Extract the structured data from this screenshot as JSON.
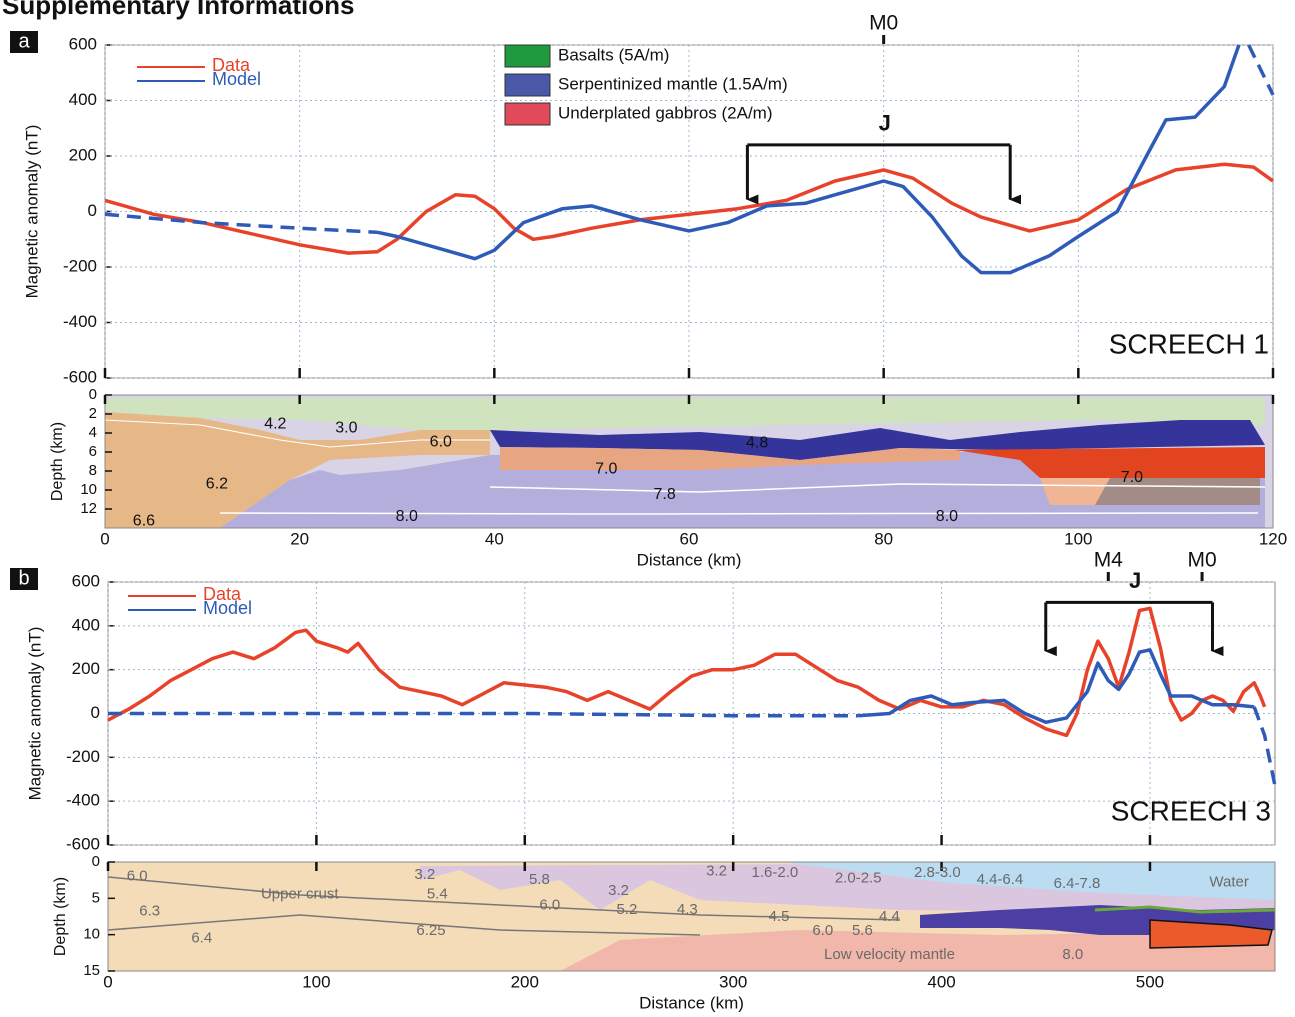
{
  "title": "Supplementary Informations",
  "chart_data": [
    {
      "type": "line",
      "panel": "a",
      "ylabel": "Magnetic anomaly (nT)",
      "label": "SCREECH 1",
      "xlim": [
        0,
        120
      ],
      "xticks": [
        0,
        20,
        40,
        60,
        80,
        100,
        120
      ],
      "ylim": [
        -600,
        600
      ],
      "yticks": [
        -600,
        -400,
        -200,
        0,
        200,
        400,
        600
      ],
      "grid": true,
      "series": [
        {
          "name": "Data",
          "color": "#e8432a",
          "x": [
            0,
            5,
            10,
            15,
            20,
            25,
            28,
            30,
            33,
            36,
            38,
            40,
            42,
            44,
            46,
            50,
            55,
            60,
            65,
            70,
            75,
            80,
            83,
            87,
            90,
            95,
            100,
            105,
            110,
            115,
            118,
            120
          ],
          "values": [
            40,
            -10,
            -40,
            -80,
            -120,
            -150,
            -145,
            -100,
            0,
            60,
            55,
            10,
            -60,
            -100,
            -90,
            -60,
            -30,
            -10,
            10,
            40,
            110,
            150,
            120,
            30,
            -20,
            -70,
            -30,
            80,
            150,
            170,
            160,
            110
          ]
        },
        {
          "name": "Model",
          "color": "#2e5bb8",
          "x": [
            28,
            30,
            35,
            38,
            40,
            43,
            47,
            50,
            55,
            60,
            64,
            68,
            72,
            75,
            80,
            82,
            85,
            88,
            90,
            93,
            97,
            100,
            104,
            107,
            109,
            112,
            115,
            116.5
          ],
          "values": [
            -75,
            -90,
            -140,
            -170,
            -140,
            -40,
            10,
            20,
            -30,
            -70,
            -40,
            20,
            30,
            60,
            110,
            90,
            -20,
            -160,
            -220,
            -220,
            -160,
            -90,
            0,
            200,
            330,
            340,
            450,
            600
          ]
        },
        {
          "color": "#2e5bb8",
          "dash": true,
          "x": [
            0,
            10,
            20,
            28
          ],
          "values": [
            -10,
            -40,
            -60,
            -75
          ]
        },
        {
          "color": "#2e5bb8",
          "dash": true,
          "x": [
            117.5,
            120
          ],
          "values": [
            600,
            420
          ]
        }
      ],
      "units_legend": [
        {
          "label": "Basalts (5A/m)",
          "color": "#1f9a3e"
        },
        {
          "label": "Serpentinized mantle (1.5A/m)",
          "color": "#4a58a8"
        },
        {
          "label": "Underplated gabbros (2A/m)",
          "color": "#e04a5a"
        }
      ],
      "markers": [
        {
          "label": "M0",
          "x": 80
        }
      ],
      "brackets": [
        {
          "label": "J",
          "x": [
            66,
            93
          ],
          "y": 240,
          "arrow_to": [
            0,
            0
          ]
        }
      ]
    },
    {
      "type": "section",
      "ylabel": "Depth (km)",
      "xlabel": "Distance (km)",
      "show_xtick_labels": true,
      "invert_y": true,
      "xlim": [
        0,
        120
      ],
      "xticks": [
        0,
        20,
        40,
        60,
        80,
        100,
        120
      ],
      "ylim": [
        0,
        14
      ],
      "yticks": [
        0,
        2,
        4,
        6,
        8,
        10,
        12
      ],
      "labels": [
        {
          "text": "4.2",
          "x": 17.5,
          "y": 3.1
        },
        {
          "text": "3.0",
          "x": 24.8,
          "y": 3.5
        },
        {
          "text": "6.0",
          "x": 34.5,
          "y": 5
        },
        {
          "text": "4.8",
          "x": 67,
          "y": 5.1
        },
        {
          "text": "7.0",
          "x": 51.5,
          "y": 7.8
        },
        {
          "text": "6.2",
          "x": 11.5,
          "y": 9.4
        },
        {
          "text": "7.8",
          "x": 57.5,
          "y": 10.5
        },
        {
          "text": "8.0",
          "x": 31,
          "y": 12.8
        },
        {
          "text": "8.0",
          "x": 86.5,
          "y": 12.8
        },
        {
          "text": "6.6",
          "x": 4,
          "y": 13.3
        },
        {
          "text": "7.0",
          "x": 105.5,
          "y": 8.7
        }
      ]
    },
    {
      "type": "line",
      "panel": "b",
      "ylabel": "Magnetic anomaly (nT)",
      "label": "SCREECH 3",
      "xlim": [
        0,
        560
      ],
      "xticks": [
        0,
        100,
        200,
        300,
        400,
        500
      ],
      "ylim": [
        -600,
        600
      ],
      "yticks": [
        -600,
        -400,
        -200,
        0,
        200,
        400,
        600
      ],
      "grid": true,
      "series": [
        {
          "name": "Data",
          "color": "#e8432a",
          "x": [
            0,
            10,
            20,
            30,
            40,
            50,
            60,
            70,
            80,
            90,
            95,
            100,
            110,
            115,
            120,
            130,
            140,
            150,
            160,
            170,
            180,
            190,
            200,
            210,
            220,
            230,
            240,
            250,
            260,
            270,
            280,
            290,
            300,
            310,
            320,
            330,
            340,
            350,
            360,
            370,
            380,
            390,
            400,
            410,
            420,
            430,
            440,
            450,
            460,
            465,
            470,
            475,
            480,
            485,
            490,
            495,
            500,
            505,
            510,
            515,
            520,
            525,
            530,
            535,
            540,
            545,
            550,
            553,
            555
          ],
          "values": [
            -30,
            20,
            80,
            150,
            200,
            250,
            280,
            250,
            300,
            370,
            380,
            330,
            300,
            280,
            320,
            200,
            120,
            100,
            80,
            40,
            90,
            140,
            130,
            120,
            100,
            60,
            100,
            60,
            20,
            100,
            170,
            200,
            200,
            220,
            270,
            270,
            210,
            150,
            120,
            60,
            20,
            60,
            30,
            30,
            60,
            40,
            -20,
            -70,
            -100,
            0,
            200,
            330,
            250,
            120,
            280,
            470,
            480,
            300,
            60,
            -30,
            0,
            60,
            80,
            60,
            10,
            100,
            140,
            80,
            30
          ]
        },
        {
          "name": "Model",
          "color": "#2e5bb8",
          "x": [
            360,
            375,
            385,
            395,
            405,
            415,
            430,
            440,
            450,
            460,
            470,
            475,
            480,
            485,
            490,
            495,
            500,
            505,
            510,
            520,
            530,
            540,
            550
          ],
          "values": [
            -10,
            0,
            60,
            80,
            40,
            50,
            60,
            0,
            -40,
            -20,
            100,
            230,
            150,
            110,
            180,
            280,
            290,
            180,
            80,
            80,
            40,
            40,
            30
          ]
        },
        {
          "color": "#2e5bb8",
          "dash": true,
          "x": [
            0,
            100,
            200,
            300,
            360
          ],
          "values": [
            0,
            0,
            0,
            -10,
            -10
          ]
        },
        {
          "color": "#2e5bb8",
          "dash": true,
          "x": [
            550,
            555,
            560
          ],
          "values": [
            30,
            -100,
            -330
          ]
        }
      ],
      "markers": [
        {
          "label": "M4",
          "x": 480
        },
        {
          "label": "M0",
          "x": 525
        }
      ],
      "brackets": [
        {
          "label": "J",
          "x": [
            450,
            530
          ],
          "y": 507,
          "arrow_to": [
            230,
            230
          ]
        }
      ]
    },
    {
      "type": "section",
      "ylabel": "Depth (km)",
      "xlabel": "Distance (km)",
      "show_xtick_labels": true,
      "invert_y": true,
      "xlim": [
        0,
        560
      ],
      "xticks": [
        0,
        100,
        200,
        300,
        400,
        500
      ],
      "ylim": [
        0,
        15
      ],
      "yticks": [
        0,
        5,
        10,
        15
      ],
      "labels": [
        {
          "text": "6.0",
          "x": 14,
          "y": 2
        },
        {
          "text": "6.3",
          "x": 20,
          "y": 6.8
        },
        {
          "text": "6.4",
          "x": 45,
          "y": 10.5
        },
        {
          "text": "Upper crust",
          "x": 92,
          "y": 4.5
        },
        {
          "text": "6.25",
          "x": 155,
          "y": 9.5
        },
        {
          "text": "3.2",
          "x": 152,
          "y": 1.8
        },
        {
          "text": "5.4",
          "x": 158,
          "y": 4.5
        },
        {
          "text": "5.8",
          "x": 207,
          "y": 2.5
        },
        {
          "text": "6.0",
          "x": 212,
          "y": 6
        },
        {
          "text": "3.2",
          "x": 245,
          "y": 4
        },
        {
          "text": "5.2",
          "x": 249,
          "y": 6.6
        },
        {
          "text": "4.3",
          "x": 278,
          "y": 6.6
        },
        {
          "text": "4.5",
          "x": 322,
          "y": 7.6
        },
        {
          "text": "4.4",
          "x": 375,
          "y": 7.6
        },
        {
          "text": "6.0",
          "x": 343,
          "y": 9.5
        },
        {
          "text": "5.6",
          "x": 362,
          "y": 9.5
        },
        {
          "text": "3.2",
          "x": 292,
          "y": 1.3
        },
        {
          "text": "1.6-2.0",
          "x": 320,
          "y": 1.5
        },
        {
          "text": "2.0-2.5",
          "x": 360,
          "y": 2.3
        },
        {
          "text": "2.8-3.0",
          "x": 398,
          "y": 1.5
        },
        {
          "text": "4.4-6.4",
          "x": 428,
          "y": 2.5
        },
        {
          "text": "6.4-7.8",
          "x": 465,
          "y": 3
        },
        {
          "text": "Water",
          "x": 538,
          "y": 2.8
        },
        {
          "text": "Low velocity mantle",
          "x": 375,
          "y": 12.8
        },
        {
          "text": "8.0",
          "x": 463,
          "y": 12.8
        }
      ]
    }
  ]
}
